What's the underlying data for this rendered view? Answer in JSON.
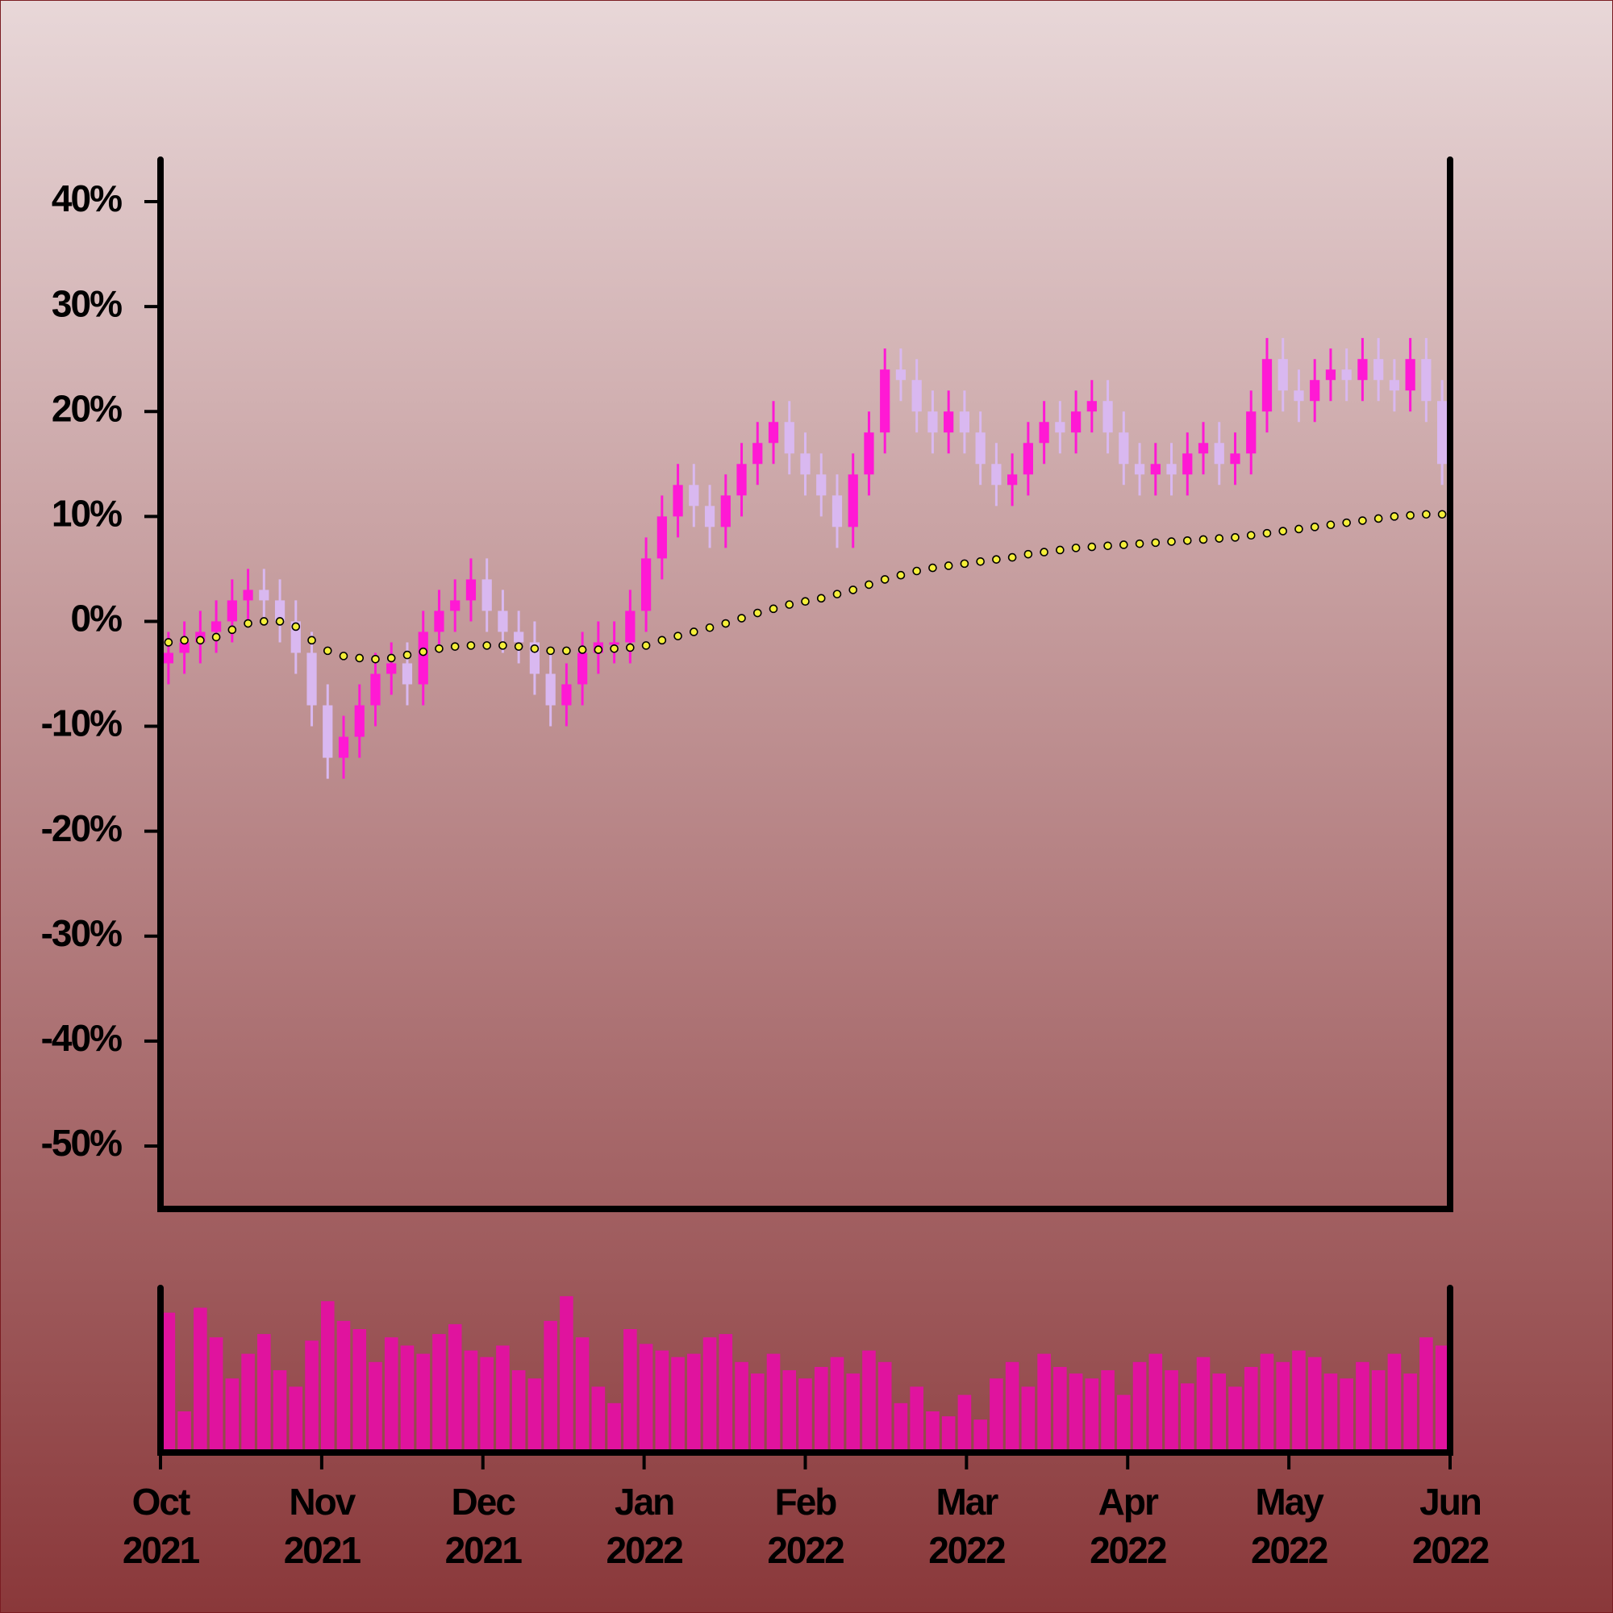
{
  "chart_data": {
    "type": "candlestick",
    "xlim": [
      "2021-10",
      "2022-06"
    ],
    "xticks": [
      {
        "value": "2021-10",
        "label": "Oct 2021"
      },
      {
        "value": "2021-11",
        "label": "Nov 2021"
      },
      {
        "value": "2021-12",
        "label": "Dec 2021"
      },
      {
        "value": "2022-01",
        "label": "Jan 2022"
      },
      {
        "value": "2022-02",
        "label": "Feb 2022"
      },
      {
        "value": "2022-03",
        "label": "Mar 2022"
      },
      {
        "value": "2022-04",
        "label": "Apr 2022"
      },
      {
        "value": "2022-05",
        "label": "May 2022"
      },
      {
        "value": "2022-06",
        "label": "Jun 2022"
      }
    ],
    "ylim": [
      -56,
      44
    ],
    "yticks": [
      {
        "value": -50,
        "label": "-50%"
      },
      {
        "value": -40,
        "label": "-40%"
      },
      {
        "value": -30,
        "label": "-30%"
      },
      {
        "value": -20,
        "label": "-20%"
      },
      {
        "value": -10,
        "label": "-10%"
      },
      {
        "value": 0,
        "label": "0%"
      },
      {
        "value": 10,
        "label": "10%"
      },
      {
        "value": 20,
        "label": "20%"
      },
      {
        "value": 30,
        "label": "30%"
      },
      {
        "value": 40,
        "label": "40%"
      }
    ],
    "up_color": "#ff19d4",
    "down_color": "#d9b8f0",
    "ma_color": "#f5ef3a",
    "volume_color": "#e0139e",
    "volume_ylim": [
      0,
      100
    ],
    "open": [
      -4,
      -3,
      -2,
      -1,
      0,
      2,
      3,
      2,
      0,
      -3,
      -8,
      -13,
      -11,
      -8,
      -5,
      -4,
      -6,
      -1,
      1,
      2,
      4,
      1,
      -1,
      -2,
      -5,
      -8,
      -6,
      -3,
      -2,
      -2,
      1,
      6,
      10,
      13,
      11,
      9,
      12,
      15,
      17,
      19,
      16,
      14,
      12,
      9,
      14,
      18,
      24,
      23,
      20,
      18,
      20,
      18,
      15,
      13,
      14,
      17,
      19,
      18,
      20,
      21,
      18,
      15,
      14,
      15,
      14,
      16,
      17,
      15,
      16,
      20,
      25,
      22,
      21,
      23,
      24,
      23,
      25,
      23,
      22,
      25,
      21
    ],
    "high": [
      -1,
      0,
      1,
      2,
      4,
      5,
      5,
      4,
      2,
      -1,
      -6,
      -9,
      -6,
      -3,
      -2,
      -2,
      1,
      3,
      4,
      6,
      6,
      3,
      1,
      0,
      -3,
      -4,
      -1,
      0,
      0,
      3,
      8,
      12,
      15,
      15,
      13,
      14,
      17,
      19,
      21,
      21,
      18,
      16,
      14,
      16,
      20,
      26,
      26,
      25,
      22,
      22,
      22,
      20,
      17,
      16,
      19,
      21,
      21,
      22,
      23,
      23,
      20,
      17,
      17,
      17,
      18,
      19,
      19,
      18,
      22,
      27,
      27,
      24,
      25,
      26,
      26,
      27,
      27,
      25,
      27,
      27,
      23
    ],
    "low": [
      -6,
      -5,
      -4,
      -3,
      -2,
      0,
      0,
      -2,
      -5,
      -10,
      -15,
      -15,
      -13,
      -10,
      -7,
      -8,
      -8,
      -3,
      -1,
      0,
      -1,
      -3,
      -4,
      -7,
      -10,
      -10,
      -8,
      -5,
      -4,
      -4,
      -1,
      4,
      8,
      9,
      7,
      7,
      10,
      13,
      15,
      14,
      12,
      10,
      7,
      7,
      12,
      16,
      21,
      18,
      16,
      16,
      16,
      13,
      11,
      11,
      12,
      15,
      16,
      16,
      18,
      16,
      13,
      12,
      12,
      12,
      12,
      14,
      13,
      13,
      14,
      18,
      20,
      19,
      19,
      21,
      21,
      21,
      21,
      20,
      20,
      19,
      13
    ],
    "close": [
      -3,
      -2,
      -1,
      0,
      2,
      3,
      2,
      0,
      -3,
      -8,
      -13,
      -11,
      -8,
      -5,
      -4,
      -6,
      -1,
      1,
      2,
      4,
      1,
      -1,
      -2,
      -5,
      -8,
      -6,
      -3,
      -2,
      -2,
      1,
      6,
      10,
      13,
      11,
      9,
      12,
      15,
      17,
      19,
      16,
      14,
      12,
      9,
      14,
      18,
      24,
      23,
      20,
      18,
      20,
      18,
      15,
      13,
      14,
      17,
      19,
      18,
      20,
      21,
      18,
      15,
      14,
      15,
      14,
      16,
      17,
      15,
      16,
      20,
      25,
      22,
      21,
      23,
      24,
      23,
      25,
      23,
      22,
      25,
      21,
      15
    ],
    "ma": [
      -2,
      -1.8,
      -1.8,
      -1.5,
      -0.8,
      -0.2,
      0,
      0,
      -0.5,
      -1.8,
      -2.8,
      -3.3,
      -3.5,
      -3.6,
      -3.5,
      -3.2,
      -2.9,
      -2.6,
      -2.4,
      -2.3,
      -2.3,
      -2.3,
      -2.4,
      -2.6,
      -2.8,
      -2.8,
      -2.7,
      -2.7,
      -2.6,
      -2.5,
      -2.3,
      -1.8,
      -1.4,
      -1,
      -0.6,
      -0.2,
      0.3,
      0.8,
      1.2,
      1.6,
      1.9,
      2.2,
      2.6,
      3,
      3.5,
      4,
      4.4,
      4.8,
      5.1,
      5.3,
      5.5,
      5.7,
      5.9,
      6.1,
      6.4,
      6.6,
      6.8,
      7,
      7.1,
      7.2,
      7.3,
      7.4,
      7.5,
      7.6,
      7.7,
      7.8,
      7.9,
      8,
      8.2,
      8.4,
      8.6,
      8.8,
      9,
      9.2,
      9.4,
      9.6,
      9.8,
      10,
      10.1,
      10.2,
      10.2
    ],
    "volume": [
      85,
      25,
      88,
      70,
      45,
      60,
      72,
      50,
      40,
      68,
      92,
      80,
      75,
      55,
      70,
      65,
      60,
      72,
      78,
      62,
      58,
      65,
      50,
      45,
      80,
      95,
      70,
      40,
      30,
      75,
      66,
      62,
      58,
      60,
      70,
      72,
      55,
      48,
      60,
      50,
      45,
      52,
      58,
      48,
      62,
      55,
      30,
      40,
      25,
      22,
      35,
      20,
      45,
      55,
      40,
      60,
      52,
      48,
      45,
      50,
      35,
      55,
      60,
      50,
      42,
      58,
      48,
      40,
      52,
      60,
      55,
      62,
      58,
      48,
      45,
      55,
      50,
      60,
      48,
      70,
      65
    ]
  }
}
